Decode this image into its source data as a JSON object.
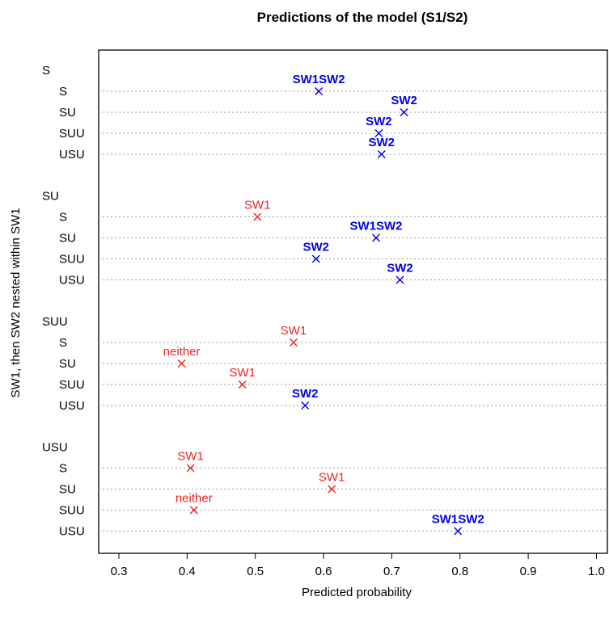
{
  "chart_data": {
    "type": "scatter",
    "title": "Predictions of the model (S1/S2)",
    "xlabel": "Predicted probability",
    "ylabel": "SW1, then SW2 nested within SW1",
    "xlim": [
      0.27,
      1.02
    ],
    "xticks": [
      0.3,
      0.4,
      0.5,
      0.6,
      0.7,
      0.8,
      0.9,
      1.0
    ],
    "xtick_labels": [
      "0.3",
      "0.4",
      "0.5",
      "0.6",
      "0.7",
      "0.8",
      "0.9",
      "1.0"
    ],
    "grid": "horizontal dotted lines at each row",
    "colors": {
      "selected": "#0000ee",
      "other": "#ee2222"
    },
    "groups": [
      {
        "label": "S",
        "rows": [
          {
            "label": "S",
            "x": 0.593,
            "point_label": "SW1SW2",
            "color": "selected"
          },
          {
            "label": "SU",
            "x": 0.718,
            "point_label": "SW2",
            "color": "selected"
          },
          {
            "label": "SUU",
            "x": 0.681,
            "point_label": "SW2",
            "color": "selected"
          },
          {
            "label": "USU",
            "x": 0.685,
            "point_label": "SW2",
            "color": "selected"
          }
        ]
      },
      {
        "label": "SU",
        "rows": [
          {
            "label": "S",
            "x": 0.503,
            "point_label": "SW1",
            "color": "other"
          },
          {
            "label": "SU",
            "x": 0.677,
            "point_label": "SW1SW2",
            "color": "selected"
          },
          {
            "label": "SUU",
            "x": 0.589,
            "point_label": "SW2",
            "color": "selected"
          },
          {
            "label": "USU",
            "x": 0.712,
            "point_label": "SW2",
            "color": "selected"
          }
        ]
      },
      {
        "label": "SUU",
        "rows": [
          {
            "label": "S",
            "x": 0.556,
            "point_label": "SW1",
            "color": "other"
          },
          {
            "label": "SU",
            "x": 0.392,
            "point_label": "neither",
            "color": "other"
          },
          {
            "label": "SUU",
            "x": 0.481,
            "point_label": "SW1",
            "color": "other"
          },
          {
            "label": "USU",
            "x": 0.573,
            "point_label": "SW2",
            "color": "selected"
          }
        ]
      },
      {
        "label": "USU",
        "rows": [
          {
            "label": "S",
            "x": 0.405,
            "point_label": "SW1",
            "color": "other"
          },
          {
            "label": "SU",
            "x": 0.612,
            "point_label": "SW1",
            "color": "other"
          },
          {
            "label": "SUU",
            "x": 0.41,
            "point_label": "neither",
            "color": "other"
          },
          {
            "label": "USU",
            "x": 0.797,
            "point_label": "SW1SW2",
            "color": "selected"
          }
        ]
      }
    ]
  }
}
